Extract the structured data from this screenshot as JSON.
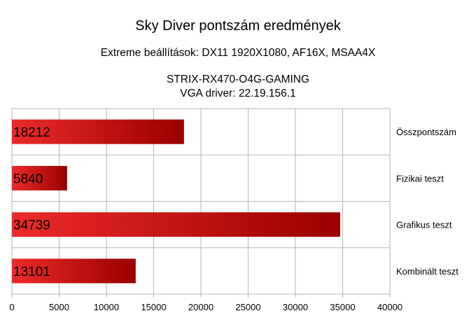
{
  "chart_data": {
    "type": "bar",
    "orientation": "horizontal",
    "title": "Sky Diver pontszám eredmények",
    "subtitle": "Extreme beállítások: DX11 1920X1080, AF16X, MSAA4X",
    "subtitle_lines": [
      "STRIX-RX470-O4G-GAMING",
      "VGA driver: 22.19.156.1"
    ],
    "categories": [
      "Összpontszám",
      "Fizikai teszt",
      "Grafikus teszt",
      "Kombinált teszt"
    ],
    "values": [
      18212,
      5840,
      34739,
      13101
    ],
    "value_labels": [
      "18212",
      "5840",
      "34739",
      "13101"
    ],
    "xlim": [
      0,
      40000
    ],
    "x_ticks": [
      0,
      5000,
      10000,
      15000,
      20000,
      25000,
      30000,
      35000,
      40000
    ],
    "x_tick_labels": [
      "0",
      "5000",
      "10000",
      "15000",
      "20000",
      "25000",
      "30000",
      "35000",
      "40000"
    ],
    "grid": true,
    "bar_color_light": "#ee2a2a",
    "bar_color_dark": "#990000"
  }
}
